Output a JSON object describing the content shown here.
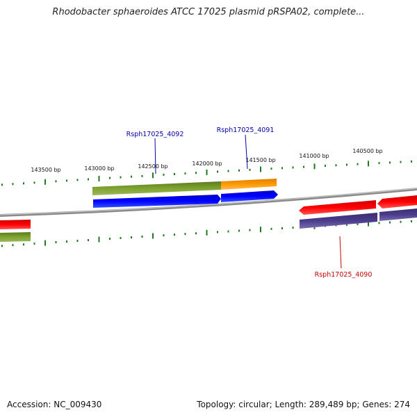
{
  "title": "Rhodobacter sphaeroides ATCC 17025 plasmid pRSPA02, complete...",
  "footer": {
    "accession": "Accession: NC_009430",
    "summary": "Topology: circular; Length: 289,489 bp; Genes: 274"
  },
  "ticks": [
    {
      "label": "143500 bp"
    },
    {
      "label": "143000 bp"
    },
    {
      "label": "142500 bp"
    },
    {
      "label": "142000 bp"
    },
    {
      "label": "141500 bp"
    },
    {
      "label": "141000 bp"
    },
    {
      "label": "140500 bp"
    }
  ],
  "genes": [
    {
      "label": "Rsph17025_4092",
      "color": "#0000aa"
    },
    {
      "label": "Rsph17025_4091",
      "color": "#0000aa"
    },
    {
      "label": "Rsph17025_4090",
      "color": "#cc0000"
    }
  ],
  "colors": {
    "backbone": "#8a8a8a",
    "tick": "#1e7a1e",
    "green_feature": "#6b8e23",
    "orange_feature": "#ff9900",
    "blue_feature": "#0000ff",
    "red_feature": "#ff0000",
    "purple_feature": "#4b3c8c"
  }
}
